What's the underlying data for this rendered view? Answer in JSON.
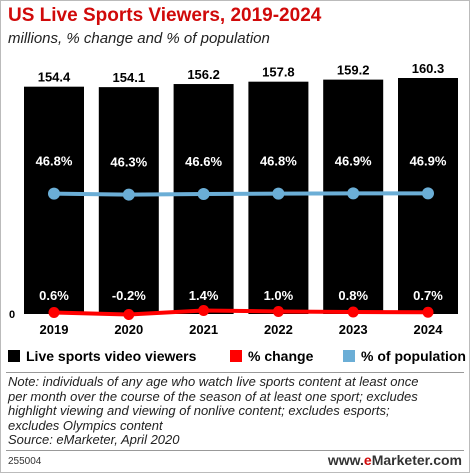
{
  "title": "US Live Sports Viewers, 2019-2024",
  "subtitle": "millions, % change and % of population",
  "chart_data": {
    "type": "bar",
    "categories": [
      "2019",
      "2020",
      "2021",
      "2022",
      "2023",
      "2024"
    ],
    "series": [
      {
        "name": "Live sports video viewers",
        "values": [
          154.4,
          154.1,
          156.2,
          157.8,
          159.2,
          160.3
        ],
        "labels": [
          "154.4",
          "154.1",
          "156.2",
          "157.8",
          "159.2",
          "160.3"
        ],
        "color": "#000000",
        "kind": "bar"
      },
      {
        "name": "% change",
        "values": [
          0.6,
          -0.2,
          1.4,
          1.0,
          0.8,
          0.7
        ],
        "labels": [
          "0.6%",
          "-0.2%",
          "1.4%",
          "1.0%",
          "0.8%",
          "0.7%"
        ],
        "color": "#ff0000",
        "kind": "line"
      },
      {
        "name": "% of population",
        "values": [
          46.8,
          46.3,
          46.6,
          46.8,
          46.9,
          46.9
        ],
        "labels": [
          "46.8%",
          "46.3%",
          "46.6%",
          "46.8%",
          "46.9%",
          "46.9%"
        ],
        "color": "#6baed6",
        "kind": "line"
      }
    ],
    "y_zero_label": "0",
    "ylim": [
      0,
      160.3
    ],
    "grid": false,
    "legend_position": "bottom"
  },
  "legend": [
    {
      "label": "Live sports video viewers",
      "color": "#000000"
    },
    {
      "label": "% change",
      "color": "#ff0000"
    },
    {
      "label": "% of population",
      "color": "#6baed6"
    }
  ],
  "note_lines": [
    "Note: individuals of any age who watch live sports content at least once",
    "per month over the course of the season of at least one sport; excludes",
    "highlight viewing and viewing of nonlive content; excludes esports;",
    "excludes Olympics content"
  ],
  "source": "Source: eMarketer, April 2020",
  "footer_id": "255004",
  "brand": {
    "prefix": "www.",
    "e": "e",
    "rest": "Marketer.com"
  }
}
